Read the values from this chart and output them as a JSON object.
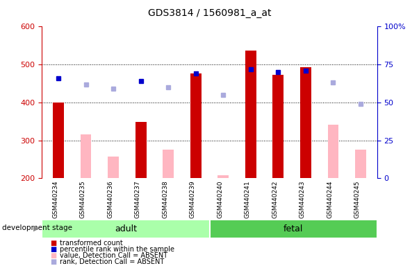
{
  "title": "GDS3814 / 1560981_a_at",
  "samples": [
    "GSM440234",
    "GSM440235",
    "GSM440236",
    "GSM440237",
    "GSM440238",
    "GSM440239",
    "GSM440240",
    "GSM440241",
    "GSM440242",
    "GSM440243",
    "GSM440244",
    "GSM440245"
  ],
  "ylim_left": [
    200,
    600
  ],
  "ylim_right": [
    0,
    100
  ],
  "yticks_left": [
    200,
    300,
    400,
    500,
    600
  ],
  "yticks_right": [
    0,
    25,
    50,
    75,
    100
  ],
  "tc_present_idx": [
    0,
    3,
    5,
    7,
    8,
    9
  ],
  "tc_present_val": [
    400,
    348,
    476,
    537,
    473,
    492
  ],
  "tc_absent_idx": [
    1,
    2,
    4,
    6,
    10,
    11
  ],
  "tc_absent_val": [
    316,
    258,
    276,
    207,
    341,
    276
  ],
  "pr_present_idx": [
    0,
    3,
    5,
    7,
    8,
    9
  ],
  "pr_present_val": [
    66,
    64,
    69,
    72,
    70,
    71
  ],
  "pr_absent_idx": [
    1,
    2,
    4,
    6,
    10,
    11
  ],
  "pr_absent_val": [
    62,
    59,
    60,
    55,
    63,
    49
  ],
  "bar_width": 0.4,
  "red_color": "#CC0000",
  "pink_color": "#FFB6C1",
  "blue_color": "#0000CC",
  "lavender_color": "#AAAADD",
  "left_axis_color": "#CC0000",
  "right_axis_color": "#0000CC",
  "adult_color": "#AAFFAA",
  "fetal_color": "#55CC55",
  "tick_bg_color": "#D0D0D0"
}
